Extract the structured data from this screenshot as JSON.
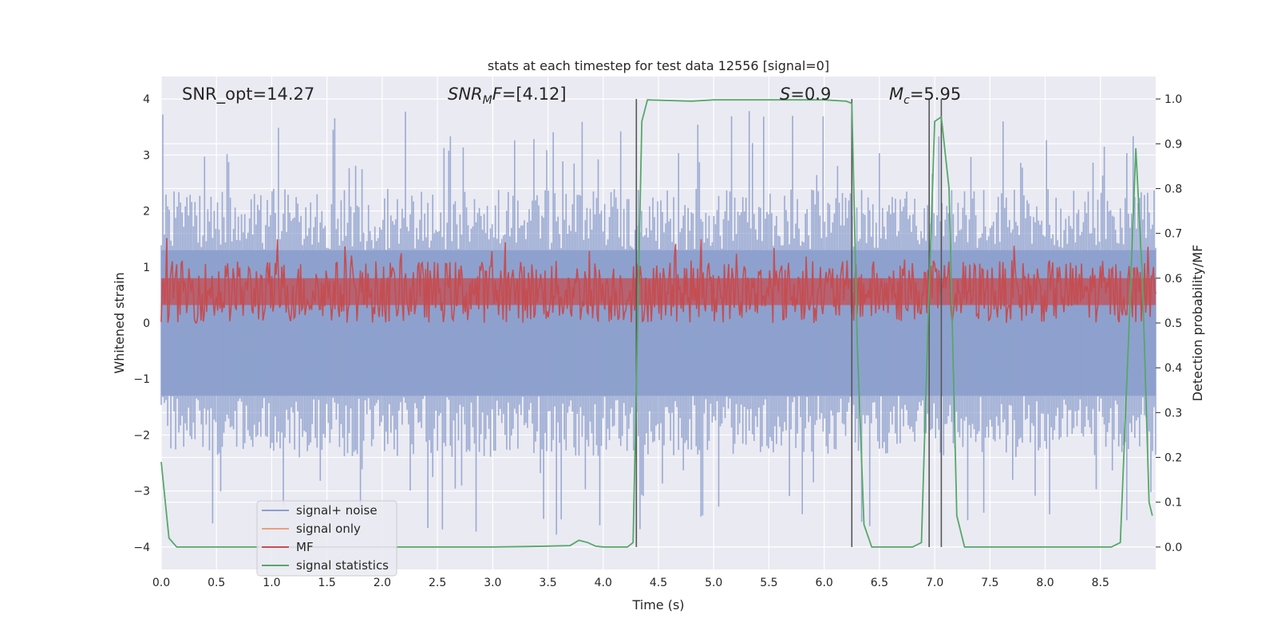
{
  "chart_data": {
    "type": "line",
    "title": "stats at each timestep for test data 12556 [signal=0]",
    "xlabel": "Time (s)",
    "ylabel": "Whitened strain",
    "y2label": "Detection probability/MF",
    "xlim": [
      0.0,
      9.0
    ],
    "ylim": [
      -4.4,
      4.4
    ],
    "y2lim": [
      -0.05,
      1.05
    ],
    "x_ticks": [
      "0.0",
      "0.5",
      "1.0",
      "1.5",
      "2.0",
      "2.5",
      "3.0",
      "3.5",
      "4.0",
      "4.5",
      "5.0",
      "5.5",
      "6.0",
      "6.5",
      "7.0",
      "7.5",
      "8.0",
      "8.5"
    ],
    "y_ticks": [
      "4",
      "3",
      "2",
      "1",
      "0",
      "−1",
      "−2",
      "−3",
      "−4"
    ],
    "y2_ticks": [
      "1.0",
      "0.9",
      "0.8",
      "0.7",
      "0.6",
      "0.5",
      "0.4",
      "0.3",
      "0.2",
      "0.1",
      "0.0"
    ],
    "grid": true,
    "legend_position": "lower-left",
    "annotations": {
      "snr_opt": "SNR_opt=14.27",
      "snr_mf_base": "SNR",
      "snr_mf_sub": "M",
      "snr_mf_tail": "F",
      "snr_mf_value": "=[4.12]",
      "s_symbol": "S",
      "s_value": "=0.9",
      "mc_base": "M",
      "mc_sub": "c",
      "mc_value": "=5.95"
    },
    "series": [
      {
        "name": "signal+ noise",
        "color": "#8c9fcc",
        "axis": "left",
        "envelope": "noise band, roughly ±2.3 with spikes to about ±3.9"
      },
      {
        "name": "signal only",
        "color": "#e8a07c",
        "axis": "left",
        "values": []
      },
      {
        "name": "MF",
        "color": "#c44e52",
        "axis": "right",
        "band": [
          0.5,
          0.64
        ]
      },
      {
        "name": "signal statistics",
        "color": "#55a868",
        "axis": "right",
        "points": [
          [
            0.0,
            0.19
          ],
          [
            0.07,
            0.02
          ],
          [
            0.14,
            0.0
          ],
          [
            0.5,
            0.0
          ],
          [
            1.0,
            0.0
          ],
          [
            2.0,
            0.0
          ],
          [
            3.0,
            0.0
          ],
          [
            3.3,
            0.001
          ],
          [
            3.5,
            0.002
          ],
          [
            3.7,
            0.003
          ],
          [
            3.78,
            0.015
          ],
          [
            3.86,
            0.01
          ],
          [
            3.93,
            0.002
          ],
          [
            4.0,
            0.0
          ],
          [
            4.22,
            0.0
          ],
          [
            4.27,
            0.01
          ],
          [
            4.35,
            0.95
          ],
          [
            4.4,
            0.998
          ],
          [
            4.8,
            0.995
          ],
          [
            5.0,
            0.998
          ],
          [
            5.5,
            0.998
          ],
          [
            6.0,
            0.998
          ],
          [
            6.2,
            0.995
          ],
          [
            6.25,
            0.99
          ],
          [
            6.3,
            0.45
          ],
          [
            6.36,
            0.05
          ],
          [
            6.43,
            0.0
          ],
          [
            6.8,
            0.0
          ],
          [
            6.88,
            0.01
          ],
          [
            6.94,
            0.5
          ],
          [
            7.0,
            0.95
          ],
          [
            7.06,
            0.96
          ],
          [
            7.13,
            0.8
          ],
          [
            7.2,
            0.07
          ],
          [
            7.27,
            0.0
          ],
          [
            8.0,
            0.0
          ],
          [
            8.6,
            0.0
          ],
          [
            8.68,
            0.01
          ],
          [
            8.76,
            0.5
          ],
          [
            8.82,
            0.89
          ],
          [
            8.88,
            0.6
          ],
          [
            8.94,
            0.1
          ],
          [
            8.97,
            0.07
          ]
        ]
      }
    ],
    "vertical_markers": [
      4.3,
      6.25,
      6.95,
      7.06
    ]
  }
}
